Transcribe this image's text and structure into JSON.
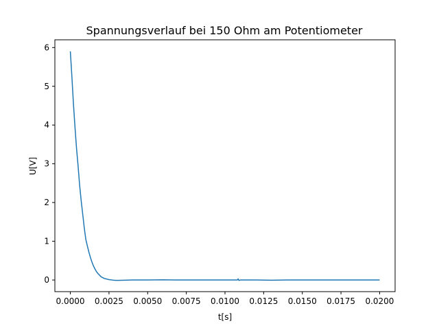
{
  "chart_data": {
    "type": "line",
    "title": "Spannungsverlauf bei 150 Ohm am Potentiometer",
    "xlabel": "t[s]",
    "ylabel": "U[V]",
    "xlim": [
      -0.001,
      0.021
    ],
    "ylim": [
      -0.3,
      6.2
    ],
    "grid": false,
    "xticks": [
      0.0,
      0.0025,
      0.005,
      0.0075,
      0.01,
      0.0125,
      0.015,
      0.0175,
      0.02
    ],
    "xtick_labels": [
      "0.0000",
      "0.0025",
      "0.0050",
      "0.0075",
      "0.0100",
      "0.0125",
      "0.0150",
      "0.0175",
      "0.0200"
    ],
    "yticks": [
      0,
      1,
      2,
      3,
      4,
      5,
      6
    ],
    "ytick_labels": [
      "0",
      "1",
      "2",
      "3",
      "4",
      "5",
      "6"
    ],
    "series": [
      {
        "color": "#1f77b4",
        "x": [
          0.0,
          0.0001,
          0.0002,
          0.0003,
          0.0004,
          0.0005,
          0.0006,
          0.0007,
          0.0008,
          0.0009,
          0.001,
          0.0011,
          0.0012,
          0.0013,
          0.0014,
          0.0015,
          0.0016,
          0.0017,
          0.0018,
          0.0019,
          0.002,
          0.0021,
          0.0022,
          0.0023,
          0.0024,
          0.0025,
          0.0026,
          0.0027,
          0.0028,
          0.003,
          0.0035,
          0.004,
          0.005,
          0.006,
          0.007,
          0.008,
          0.009,
          0.01,
          0.0108,
          0.01085,
          0.0109,
          0.011,
          0.012,
          0.013,
          0.014,
          0.015,
          0.016,
          0.017,
          0.018,
          0.019,
          0.02
        ],
        "y": [
          5.9,
          5.25,
          4.55,
          3.95,
          3.4,
          2.95,
          2.45,
          2.05,
          1.7,
          1.35,
          1.05,
          0.88,
          0.72,
          0.58,
          0.46,
          0.36,
          0.28,
          0.21,
          0.16,
          0.12,
          0.08,
          0.06,
          0.04,
          0.03,
          0.02,
          0.01,
          0.005,
          0.0,
          -0.005,
          -0.01,
          -0.005,
          0.0,
          0.0,
          0.005,
          0.0,
          0.0,
          0.0,
          0.0,
          0.0,
          0.03,
          -0.01,
          0.0,
          0.0,
          -0.005,
          0.0,
          0.0,
          0.0,
          0.0,
          0.0,
          0.0,
          0.0
        ]
      }
    ]
  }
}
